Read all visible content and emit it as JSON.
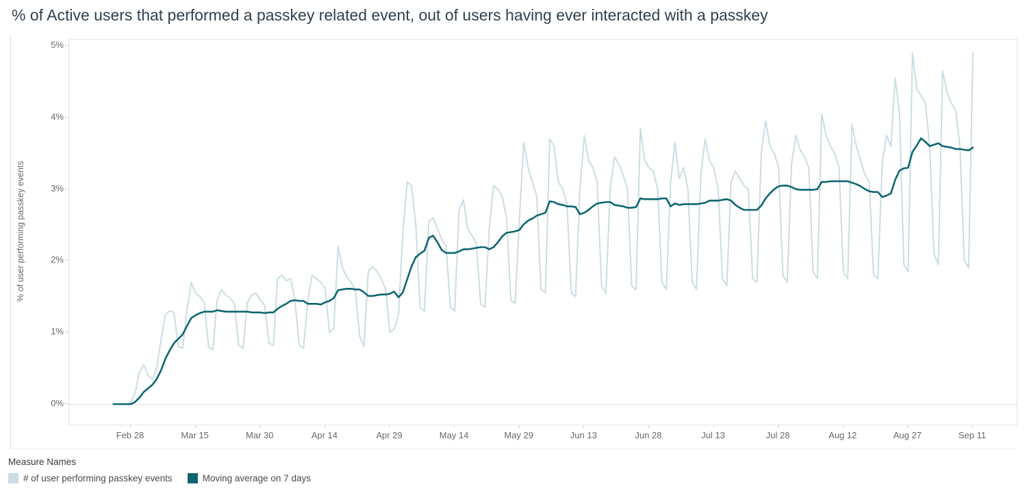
{
  "chart_data": {
    "type": "line",
    "title": "% of Active users that performed a passkey related event, out of users having ever interacted with a passkey",
    "xlabel": "",
    "ylabel": "% of user performing passkey events",
    "ylim": [
      0,
      5
    ],
    "y_ticks": [
      "0%",
      "1%",
      "2%",
      "3%",
      "4%",
      "5%"
    ],
    "x_tick_labels": [
      "Feb 28",
      "Mar 15",
      "Mar 30",
      "Apr 14",
      "Apr 29",
      "May 14",
      "May 29",
      "Jun 13",
      "Jun 28",
      "Jul 13",
      "Jul 28",
      "Aug 12",
      "Aug 27",
      "Sep 11"
    ],
    "grid": "dotted baseline at 0% only",
    "legend_title": "Measure Names",
    "legend_position": "bottom-left",
    "x": [
      "Feb 24",
      "Feb 25",
      "Feb 26",
      "Feb 27",
      "Feb 28",
      "Mar 1",
      "Mar 2",
      "Mar 3",
      "Mar 4",
      "Mar 5",
      "Mar 6",
      "Mar 7",
      "Mar 8",
      "Mar 9",
      "Mar 10",
      "Mar 11",
      "Mar 12",
      "Mar 13",
      "Mar 14",
      "Mar 15",
      "Mar 16",
      "Mar 17",
      "Mar 18",
      "Mar 19",
      "Mar 20",
      "Mar 21",
      "Mar 22",
      "Mar 23",
      "Mar 24",
      "Mar 25",
      "Mar 26",
      "Mar 27",
      "Mar 28",
      "Mar 29",
      "Mar 30",
      "Mar 31",
      "Apr 1",
      "Apr 2",
      "Apr 3",
      "Apr 4",
      "Apr 5",
      "Apr 6",
      "Apr 7",
      "Apr 8",
      "Apr 9",
      "Apr 10",
      "Apr 11",
      "Apr 12",
      "Apr 13",
      "Apr 14",
      "Apr 15",
      "Apr 16",
      "Apr 17",
      "Apr 18",
      "Apr 19",
      "Apr 20",
      "Apr 21",
      "Apr 22",
      "Apr 23",
      "Apr 24",
      "Apr 25",
      "Apr 26",
      "Apr 27",
      "Apr 28",
      "Apr 29",
      "Apr 30",
      "May 1",
      "May 2",
      "May 3",
      "May 4",
      "May 5",
      "May 6",
      "May 7",
      "May 8",
      "May 9",
      "May 10",
      "May 11",
      "May 12",
      "May 13",
      "May 14",
      "May 15",
      "May 16",
      "May 17",
      "May 18",
      "May 19",
      "May 20",
      "May 21",
      "May 22",
      "May 23",
      "May 24",
      "May 25",
      "May 26",
      "May 27",
      "May 28",
      "May 29",
      "May 30",
      "May 31",
      "Jun 1",
      "Jun 2",
      "Jun 3",
      "Jun 4",
      "Jun 5",
      "Jun 6",
      "Jun 7",
      "Jun 8",
      "Jun 9",
      "Jun 10",
      "Jun 11",
      "Jun 12",
      "Jun 13",
      "Jun 14",
      "Jun 15",
      "Jun 16",
      "Jun 17",
      "Jun 18",
      "Jun 19",
      "Jun 20",
      "Jun 21",
      "Jun 22",
      "Jun 23",
      "Jun 24",
      "Jun 25",
      "Jun 26",
      "Jun 27",
      "Jun 28",
      "Jun 29",
      "Jun 30",
      "Jul 1",
      "Jul 2",
      "Jul 3",
      "Jul 4",
      "Jul 5",
      "Jul 6",
      "Jul 7",
      "Jul 8",
      "Jul 9",
      "Jul 10",
      "Jul 11",
      "Jul 12",
      "Jul 13",
      "Jul 14",
      "Jul 15",
      "Jul 16",
      "Jul 17",
      "Jul 18",
      "Jul 19",
      "Jul 20",
      "Jul 21",
      "Jul 22",
      "Jul 23",
      "Jul 24",
      "Jul 25",
      "Jul 26",
      "Jul 27",
      "Jul 28",
      "Jul 29",
      "Jul 30",
      "Jul 31",
      "Aug 1",
      "Aug 2",
      "Aug 3",
      "Aug 4",
      "Aug 5",
      "Aug 6",
      "Aug 7",
      "Aug 8",
      "Aug 9",
      "Aug 10",
      "Aug 11",
      "Aug 12",
      "Aug 13",
      "Aug 14",
      "Aug 15",
      "Aug 16",
      "Aug 17",
      "Aug 18",
      "Aug 19",
      "Aug 20",
      "Aug 21",
      "Aug 22",
      "Aug 23",
      "Aug 24",
      "Aug 25",
      "Aug 26",
      "Aug 27",
      "Aug 28",
      "Aug 29",
      "Aug 30",
      "Aug 31",
      "Sep 1",
      "Sep 2",
      "Sep 3",
      "Sep 4",
      "Sep 5",
      "Sep 6",
      "Sep 7",
      "Sep 8",
      "Sep 9",
      "Sep 10",
      "Sep 11"
    ],
    "series": [
      {
        "name": "# of user performing passkey events",
        "color": "#c9dde3",
        "values": [
          0,
          0,
          0,
          0,
          0.02,
          0.15,
          0.45,
          0.55,
          0.4,
          0.35,
          0.5,
          0.9,
          1.25,
          1.3,
          1.28,
          0.8,
          0.78,
          1.3,
          1.7,
          1.55,
          1.5,
          1.42,
          0.8,
          0.76,
          1.45,
          1.6,
          1.52,
          1.48,
          1.4,
          0.82,
          0.78,
          1.42,
          1.52,
          1.55,
          1.45,
          1.38,
          0.85,
          0.82,
          1.75,
          1.8,
          1.72,
          1.75,
          1.45,
          0.82,
          0.78,
          1.45,
          1.8,
          1.75,
          1.7,
          1.62,
          1,
          1.05,
          2.2,
          1.9,
          1.78,
          1.7,
          1.6,
          0.95,
          0.8,
          1.85,
          1.92,
          1.85,
          1.75,
          1.6,
          1,
          1.05,
          1.25,
          2.4,
          3.1,
          3.05,
          2.5,
          1.35,
          1.3,
          2.55,
          2.6,
          2.45,
          2.3,
          2.2,
          1.35,
          1.3,
          2.7,
          2.85,
          2.45,
          2.35,
          2.25,
          1.4,
          1.35,
          2.45,
          3.05,
          3,
          2.9,
          2.6,
          1.45,
          1.4,
          2.6,
          3.65,
          3.3,
          3.1,
          2.9,
          1.6,
          1.55,
          3.7,
          3.6,
          3.1,
          3,
          2.8,
          1.55,
          1.5,
          3,
          3.75,
          3.4,
          3.3,
          3.1,
          1.65,
          1.55,
          3,
          3.45,
          3.35,
          3.2,
          3,
          1.65,
          1.6,
          3.85,
          3.4,
          3.3,
          3.25,
          3,
          1.7,
          1.6,
          3.1,
          3.65,
          3.15,
          3.3,
          3,
          1.7,
          1.6,
          3.2,
          3.7,
          3.4,
          3.3,
          3,
          1.75,
          1.65,
          3.1,
          3.25,
          3.15,
          3.05,
          3,
          1.75,
          1.7,
          3.5,
          3.95,
          3.6,
          3.5,
          3.3,
          1.8,
          1.7,
          3.35,
          3.75,
          3.55,
          3.45,
          3.3,
          1.85,
          1.75,
          4.05,
          3.75,
          3.6,
          3.5,
          3.3,
          1.85,
          1.75,
          3.9,
          3.6,
          3.4,
          3.2,
          3.1,
          1.8,
          1.75,
          3.35,
          3.75,
          3.6,
          4.55,
          4.05,
          1.95,
          1.85,
          4.9,
          4.4,
          4.3,
          4.2,
          3.6,
          2.1,
          1.95,
          4.65,
          4.35,
          4.2,
          4.1,
          3.6,
          2,
          1.9,
          4.9
        ]
      },
      {
        "name": "Moving average on 7 days",
        "color": "#0d6571",
        "window": 7,
        "values": [
          0,
          0,
          0,
          0,
          0,
          0.03,
          0.09,
          0.17,
          0.22,
          0.27,
          0.35,
          0.47,
          0.63,
          0.75,
          0.85,
          0.91,
          0.97,
          1.09,
          1.2,
          1.24,
          1.27,
          1.29,
          1.29,
          1.29,
          1.31,
          1.3,
          1.29,
          1.29,
          1.29,
          1.29,
          1.29,
          1.29,
          1.28,
          1.28,
          1.28,
          1.27,
          1.28,
          1.28,
          1.33,
          1.37,
          1.4,
          1.44,
          1.45,
          1.44,
          1.44,
          1.4,
          1.4,
          1.4,
          1.39,
          1.42,
          1.44,
          1.48,
          1.59,
          1.6,
          1.61,
          1.61,
          1.6,
          1.6,
          1.56,
          1.51,
          1.51,
          1.52,
          1.53,
          1.53,
          1.54,
          1.57,
          1.49,
          1.56,
          1.74,
          1.92,
          2.05,
          2.1,
          2.14,
          2.32,
          2.35,
          2.26,
          2.15,
          2.11,
          2.11,
          2.11,
          2.13,
          2.16,
          2.16,
          2.17,
          2.18,
          2.19,
          2.19,
          2.16,
          2.19,
          2.26,
          2.34,
          2.39,
          2.4,
          2.41,
          2.43,
          2.51,
          2.56,
          2.59,
          2.63,
          2.65,
          2.67,
          2.83,
          2.82,
          2.79,
          2.78,
          2.76,
          2.76,
          2.75,
          2.65,
          2.67,
          2.71,
          2.76,
          2.8,
          2.81,
          2.82,
          2.82,
          2.78,
          2.77,
          2.76,
          2.74,
          2.74,
          2.75,
          2.87,
          2.86,
          2.86,
          2.86,
          2.86,
          2.87,
          2.87,
          2.76,
          2.8,
          2.78,
          2.79,
          2.79,
          2.79,
          2.79,
          2.8,
          2.81,
          2.84,
          2.84,
          2.84,
          2.85,
          2.86,
          2.84,
          2.78,
          2.74,
          2.71,
          2.71,
          2.71,
          2.71,
          2.77,
          2.87,
          2.94,
          3,
          3.04,
          3.05,
          3.05,
          3.03,
          3,
          2.99,
          2.99,
          2.99,
          2.99,
          3,
          3.1,
          3.1,
          3.11,
          3.11,
          3.11,
          3.11,
          3.11,
          3.09,
          3.07,
          3.04,
          3,
          2.97,
          2.96,
          2.96,
          2.89,
          2.91,
          2.94,
          3.13,
          3.26,
          3.29,
          3.3,
          3.52,
          3.61,
          3.71,
          3.66,
          3.6,
          3.62,
          3.64,
          3.6,
          3.59,
          3.58,
          3.56,
          3.56,
          3.55,
          3.54,
          3.58
        ]
      }
    ]
  }
}
